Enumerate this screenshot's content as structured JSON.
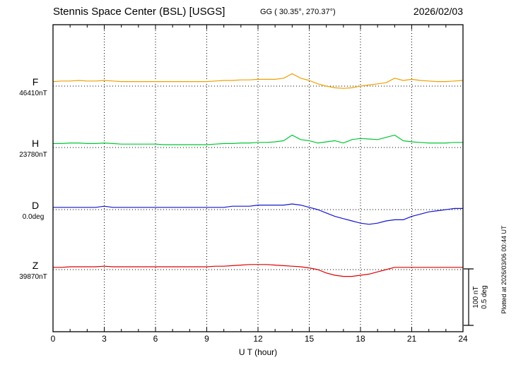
{
  "header": {
    "title": "Stennis Space Center (BSL)  [USGS]",
    "subtitle": "GG ( 30.35°, 270.37°)",
    "date": "2026/02/03"
  },
  "axis": {
    "xlabel": "U T (hour)",
    "ticks": [
      "0",
      "3",
      "6",
      "9",
      "12",
      "15",
      "18",
      "21",
      "24"
    ]
  },
  "scale_bar": {
    "label_nt": "100 nT",
    "label_deg": "0.5 deg"
  },
  "footer_note": "Plotted at 2026/03/06 00:44 UT",
  "chart_data": {
    "type": "line",
    "title": "Stennis Space Center (BSL) [USGS] magnetogram",
    "xlabel": "U T (hour)",
    "xlim": [
      0,
      24
    ],
    "step_hours": 0.5,
    "grid": "dotted vertical lines every 3 h; dotted horizontal line at each series baseline",
    "legend_position": "left margin labels",
    "scale": {
      "nT_per_division": 100,
      "deg_per_division": 0.5
    },
    "series": [
      {
        "name": "F",
        "unit": "nT",
        "color": "#f0a000",
        "baseline_value": 46410,
        "baseline_label": "46410nT",
        "offsets": [
          8,
          9,
          9,
          10,
          9,
          9,
          10,
          9,
          8,
          8,
          8,
          8,
          8,
          8,
          8,
          8,
          8,
          8,
          8,
          9,
          10,
          10,
          11,
          11,
          12,
          12,
          12,
          14,
          22,
          14,
          10,
          4,
          0,
          -3,
          -4,
          -3,
          0,
          2,
          4,
          6,
          14,
          10,
          12,
          10,
          9,
          8,
          8,
          9,
          10
        ]
      },
      {
        "name": "H",
        "unit": "nT",
        "color": "#00c832",
        "baseline_value": 23780,
        "baseline_label": "23780nT",
        "offsets": [
          7,
          7,
          8,
          8,
          7,
          7,
          8,
          7,
          6,
          6,
          6,
          6,
          6,
          5,
          5,
          5,
          5,
          5,
          5,
          6,
          7,
          7,
          8,
          8,
          9,
          9,
          10,
          12,
          22,
          14,
          12,
          8,
          10,
          12,
          8,
          14,
          16,
          15,
          14,
          18,
          22,
          12,
          10,
          9,
          8,
          8,
          8,
          9,
          9
        ]
      },
      {
        "name": "D",
        "unit": "deg",
        "color": "#1414d2",
        "baseline_value": 0.0,
        "baseline_label": "0.0deg",
        "offsets": [
          0.02,
          0.02,
          0.02,
          0.02,
          0.02,
          0.02,
          0.03,
          0.02,
          0.02,
          0.02,
          0.02,
          0.02,
          0.02,
          0.02,
          0.02,
          0.02,
          0.02,
          0.02,
          0.02,
          0.02,
          0.02,
          0.03,
          0.03,
          0.03,
          0.04,
          0.04,
          0.04,
          0.04,
          0.05,
          0.04,
          0.02,
          0.0,
          -0.03,
          -0.06,
          -0.08,
          -0.1,
          -0.12,
          -0.13,
          -0.12,
          -0.1,
          -0.09,
          -0.09,
          -0.06,
          -0.04,
          -0.02,
          -0.01,
          0.0,
          0.01,
          0.01
        ]
      },
      {
        "name": "Z",
        "unit": "nT",
        "color": "#e00000",
        "baseline_value": 39870,
        "baseline_label": "39870nT",
        "offsets": [
          4,
          4,
          5,
          5,
          5,
          5,
          6,
          5,
          5,
          5,
          5,
          5,
          5,
          5,
          5,
          5,
          5,
          5,
          5,
          6,
          6,
          7,
          8,
          9,
          9,
          9,
          8,
          7,
          6,
          5,
          3,
          0,
          -6,
          -10,
          -12,
          -12,
          -10,
          -8,
          -4,
          0,
          4,
          4,
          4,
          4,
          4,
          4,
          4,
          4,
          4
        ]
      }
    ]
  }
}
